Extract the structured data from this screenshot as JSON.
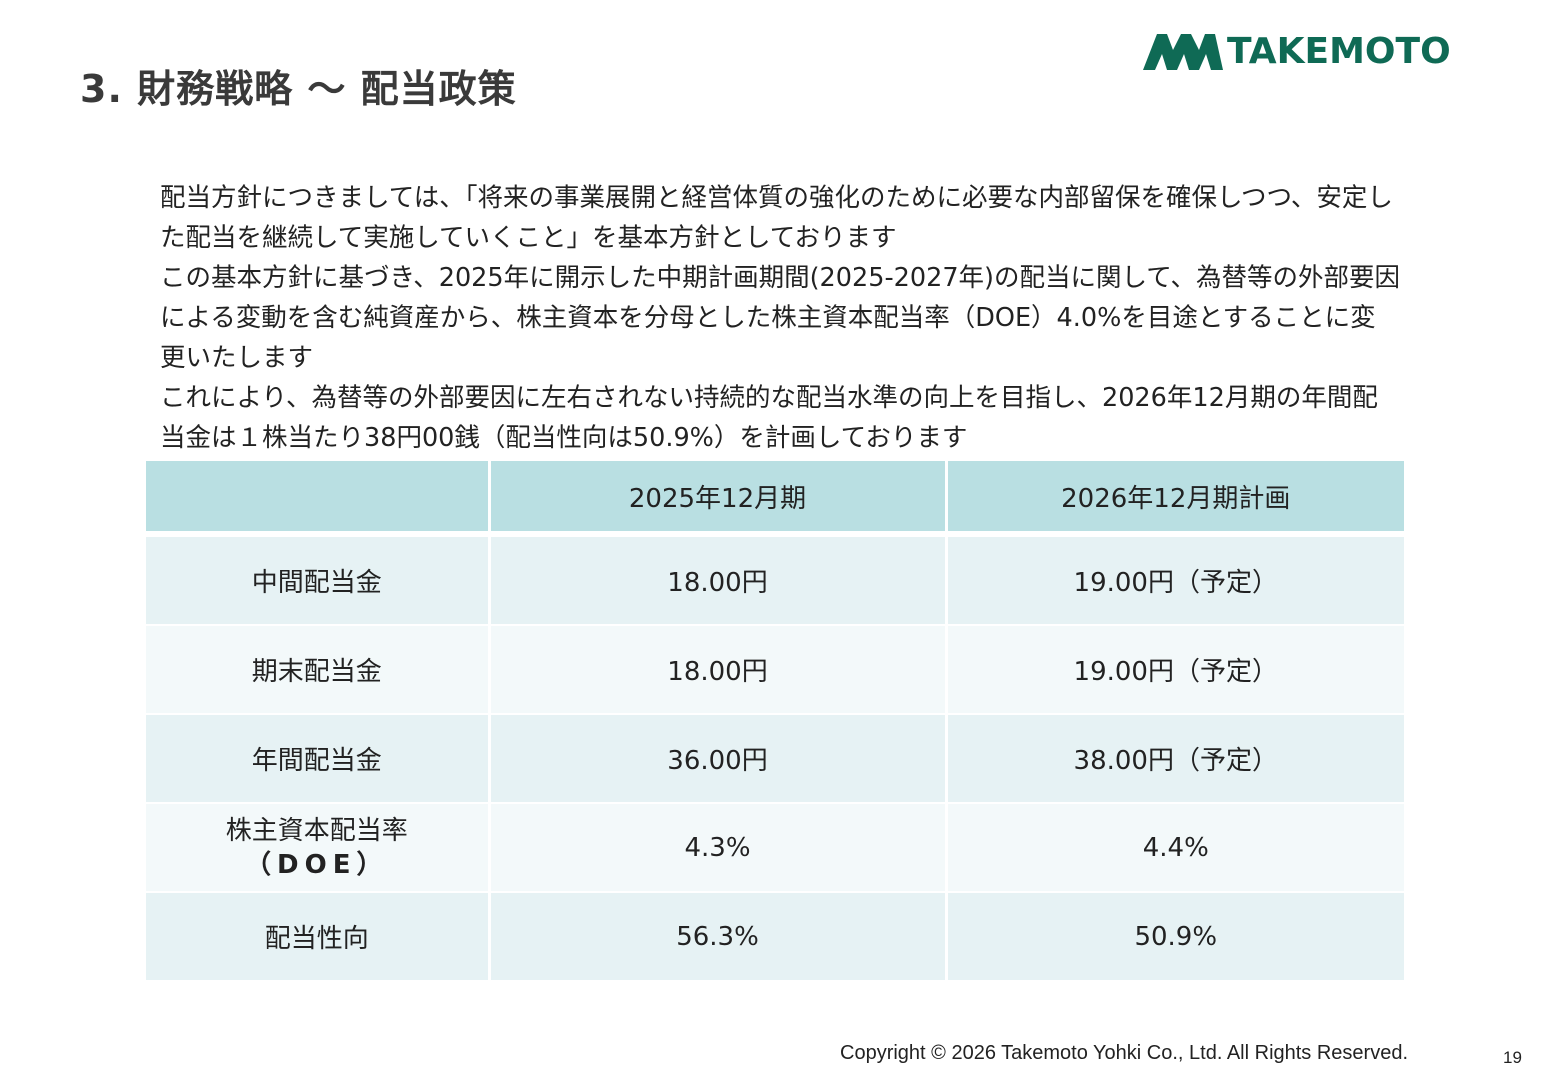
{
  "header": {
    "title": "3.  財務戦略 ～ 配当政策",
    "logo_text": "TAKEMOTO",
    "brand_color": "#0f6a55"
  },
  "body": {
    "paragraphs": [
      "配当方針につきましては、「将来の事業展開と経営体質の強化のために必要な内部留保を確保しつつ、安定した配当を継続して実施していくこと」を基本方針としております",
      "この基本方針に基づき、2025年に開示した中期計画期間(2025-2027年)の配当に関して、為替等の外部要因による変動を含む純資産から、株主資本を分母とした株主資本配当率（DOE）4.0%を目途とすることに変更いたします",
      "これにより、為替等の外部要因に左右されない持続的な配当水準の向上を目指し、2026年12月期の年間配当金は１株当たり38円00銭（配当性向は50.9%）を計画しております"
    ]
  },
  "table": {
    "header": {
      "blank": "",
      "col_a": "2025年12月期",
      "col_b": "2026年12月期計画"
    },
    "rows": [
      {
        "label": "中間配当金",
        "label_sub": "",
        "a": "18.00円",
        "b": "19.00円（予定）"
      },
      {
        "label": "期末配当金",
        "label_sub": "",
        "a": "18.00円",
        "b": "19.00円（予定）"
      },
      {
        "label": "年間配当金",
        "label_sub": "",
        "a": "36.00円",
        "b": "38.00円（予定）"
      },
      {
        "label": "株主資本配当率",
        "label_sub": "（DOE）",
        "a": "4.3%",
        "b": "4.4%"
      },
      {
        "label": "配当性向",
        "label_sub": "",
        "a": "56.3%",
        "b": "50.9%"
      }
    ]
  },
  "footer": {
    "copyright": "Copyright © 2026 Takemoto Yohki Co., Ltd. All Rights Reserved.",
    "page_number": "19"
  }
}
